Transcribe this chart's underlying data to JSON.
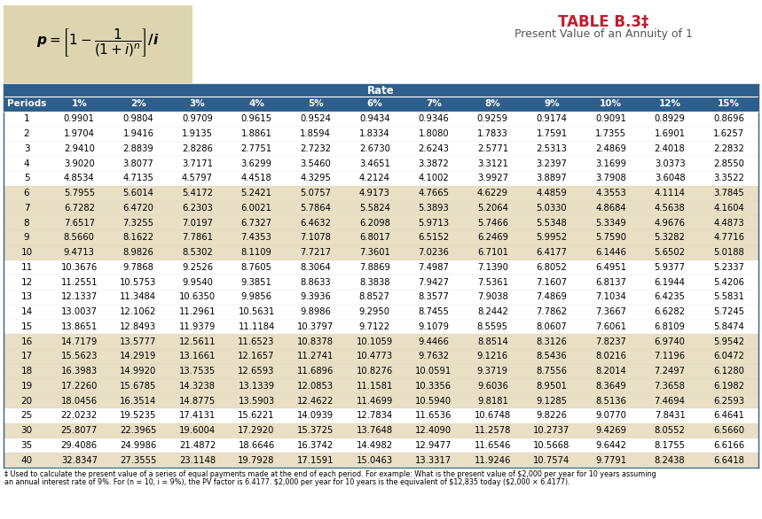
{
  "title": "TABLE B.3‡",
  "subtitle": "Present Value of an Annuity of 1",
  "rate_label": "Rate",
  "col_headers": [
    "Periods",
    "1%",
    "2%",
    "3%",
    "4%",
    "5%",
    "6%",
    "7%",
    "8%",
    "9%",
    "10%",
    "12%",
    "15%"
  ],
  "periods": [
    1,
    2,
    3,
    4,
    5,
    6,
    7,
    8,
    9,
    10,
    11,
    12,
    13,
    14,
    15,
    16,
    17,
    18,
    19,
    20,
    25,
    30,
    35,
    40
  ],
  "data": [
    [
      0.9901,
      0.9804,
      0.9709,
      0.9615,
      0.9524,
      0.9434,
      0.9346,
      0.9259,
      0.9174,
      0.9091,
      0.8929,
      0.8696
    ],
    [
      1.9704,
      1.9416,
      1.9135,
      1.8861,
      1.8594,
      1.8334,
      1.808,
      1.7833,
      1.7591,
      1.7355,
      1.6901,
      1.6257
    ],
    [
      2.941,
      2.8839,
      2.8286,
      2.7751,
      2.7232,
      2.673,
      2.6243,
      2.5771,
      2.5313,
      2.4869,
      2.4018,
      2.2832
    ],
    [
      3.902,
      3.8077,
      3.7171,
      3.6299,
      3.546,
      3.4651,
      3.3872,
      3.3121,
      3.2397,
      3.1699,
      3.0373,
      2.855
    ],
    [
      4.8534,
      4.7135,
      4.5797,
      4.4518,
      4.3295,
      4.2124,
      4.1002,
      3.9927,
      3.8897,
      3.7908,
      3.6048,
      3.3522
    ],
    [
      5.7955,
      5.6014,
      5.4172,
      5.2421,
      5.0757,
      4.9173,
      4.7665,
      4.6229,
      4.4859,
      4.3553,
      4.1114,
      3.7845
    ],
    [
      6.7282,
      6.472,
      6.2303,
      6.0021,
      5.7864,
      5.5824,
      5.3893,
      5.2064,
      5.033,
      4.8684,
      4.5638,
      4.1604
    ],
    [
      7.6517,
      7.3255,
      7.0197,
      6.7327,
      6.4632,
      6.2098,
      5.9713,
      5.7466,
      5.5348,
      5.3349,
      4.9676,
      4.4873
    ],
    [
      8.566,
      8.1622,
      7.7861,
      7.4353,
      7.1078,
      6.8017,
      6.5152,
      6.2469,
      5.9952,
      5.759,
      5.3282,
      4.7716
    ],
    [
      9.4713,
      8.9826,
      8.5302,
      8.1109,
      7.7217,
      7.3601,
      7.0236,
      6.7101,
      6.4177,
      6.1446,
      5.6502,
      5.0188
    ],
    [
      10.3676,
      9.7868,
      9.2526,
      8.7605,
      8.3064,
      7.8869,
      7.4987,
      7.139,
      6.8052,
      6.4951,
      5.9377,
      5.2337
    ],
    [
      11.2551,
      10.5753,
      9.954,
      9.3851,
      8.8633,
      8.3838,
      7.9427,
      7.5361,
      7.1607,
      6.8137,
      6.1944,
      5.4206
    ],
    [
      12.1337,
      11.3484,
      10.635,
      9.9856,
      9.3936,
      8.8527,
      8.3577,
      7.9038,
      7.4869,
      7.1034,
      6.4235,
      5.5831
    ],
    [
      13.0037,
      12.1062,
      11.2961,
      10.5631,
      9.8986,
      9.295,
      8.7455,
      8.2442,
      7.7862,
      7.3667,
      6.6282,
      5.7245
    ],
    [
      13.8651,
      12.8493,
      11.9379,
      11.1184,
      10.3797,
      9.7122,
      9.1079,
      8.5595,
      8.0607,
      7.6061,
      6.8109,
      5.8474
    ],
    [
      14.7179,
      13.5777,
      12.5611,
      11.6523,
      10.8378,
      10.1059,
      9.4466,
      8.8514,
      8.3126,
      7.8237,
      6.974,
      5.9542
    ],
    [
      15.5623,
      14.2919,
      13.1661,
      12.1657,
      11.2741,
      10.4773,
      9.7632,
      9.1216,
      8.5436,
      8.0216,
      7.1196,
      6.0472
    ],
    [
      16.3983,
      14.992,
      13.7535,
      12.6593,
      11.6896,
      10.8276,
      10.0591,
      9.3719,
      8.7556,
      8.2014,
      7.2497,
      6.128
    ],
    [
      17.226,
      15.6785,
      14.3238,
      13.1339,
      12.0853,
      11.1581,
      10.3356,
      9.6036,
      8.9501,
      8.3649,
      7.3658,
      6.1982
    ],
    [
      18.0456,
      16.3514,
      14.8775,
      13.5903,
      12.4622,
      11.4699,
      10.594,
      9.8181,
      9.1285,
      8.5136,
      7.4694,
      6.2593
    ],
    [
      22.0232,
      19.5235,
      17.4131,
      15.6221,
      14.0939,
      12.7834,
      11.6536,
      10.6748,
      9.8226,
      9.077,
      7.8431,
      6.4641
    ],
    [
      25.8077,
      22.3965,
      19.6004,
      17.292,
      15.3725,
      13.7648,
      12.409,
      11.2578,
      10.2737,
      9.4269,
      8.0552,
      6.566
    ],
    [
      29.4086,
      24.9986,
      21.4872,
      18.6646,
      16.3742,
      14.4982,
      12.9477,
      11.6546,
      10.5668,
      9.6442,
      8.1755,
      6.6166
    ],
    [
      32.8347,
      27.3555,
      23.1148,
      19.7928,
      17.1591,
      15.0463,
      13.3317,
      11.9246,
      10.7574,
      9.7791,
      8.2438,
      6.6418
    ]
  ],
  "header_bg": "#2e5f8c",
  "header_fg": "#ffffff",
  "rate_bar_bg": "#2e5f8c",
  "rate_bar_fg": "#ffffff",
  "odd_row_bg": "#ffffff",
  "even_row_bg": "#e8dfc4",
  "formula_bg": "#ddd5b0",
  "title_color": "#be1e2d",
  "subtitle_color": "#555555",
  "border_color": "#2e5f8c",
  "footnote_line1": "‡ Used to calculate the present value of a series of equal payments made at the end of each period. For example: What is the present value of $2,000 per year for 10 years assuming",
  "footnote_line2": "an annual interest rate of 9%. For (n = 10, i = 9%), the PV factor is 6.4177. $2,000 per year for 10 years is the equivalent of $12,835 today ($2,000 × 6.4177)."
}
